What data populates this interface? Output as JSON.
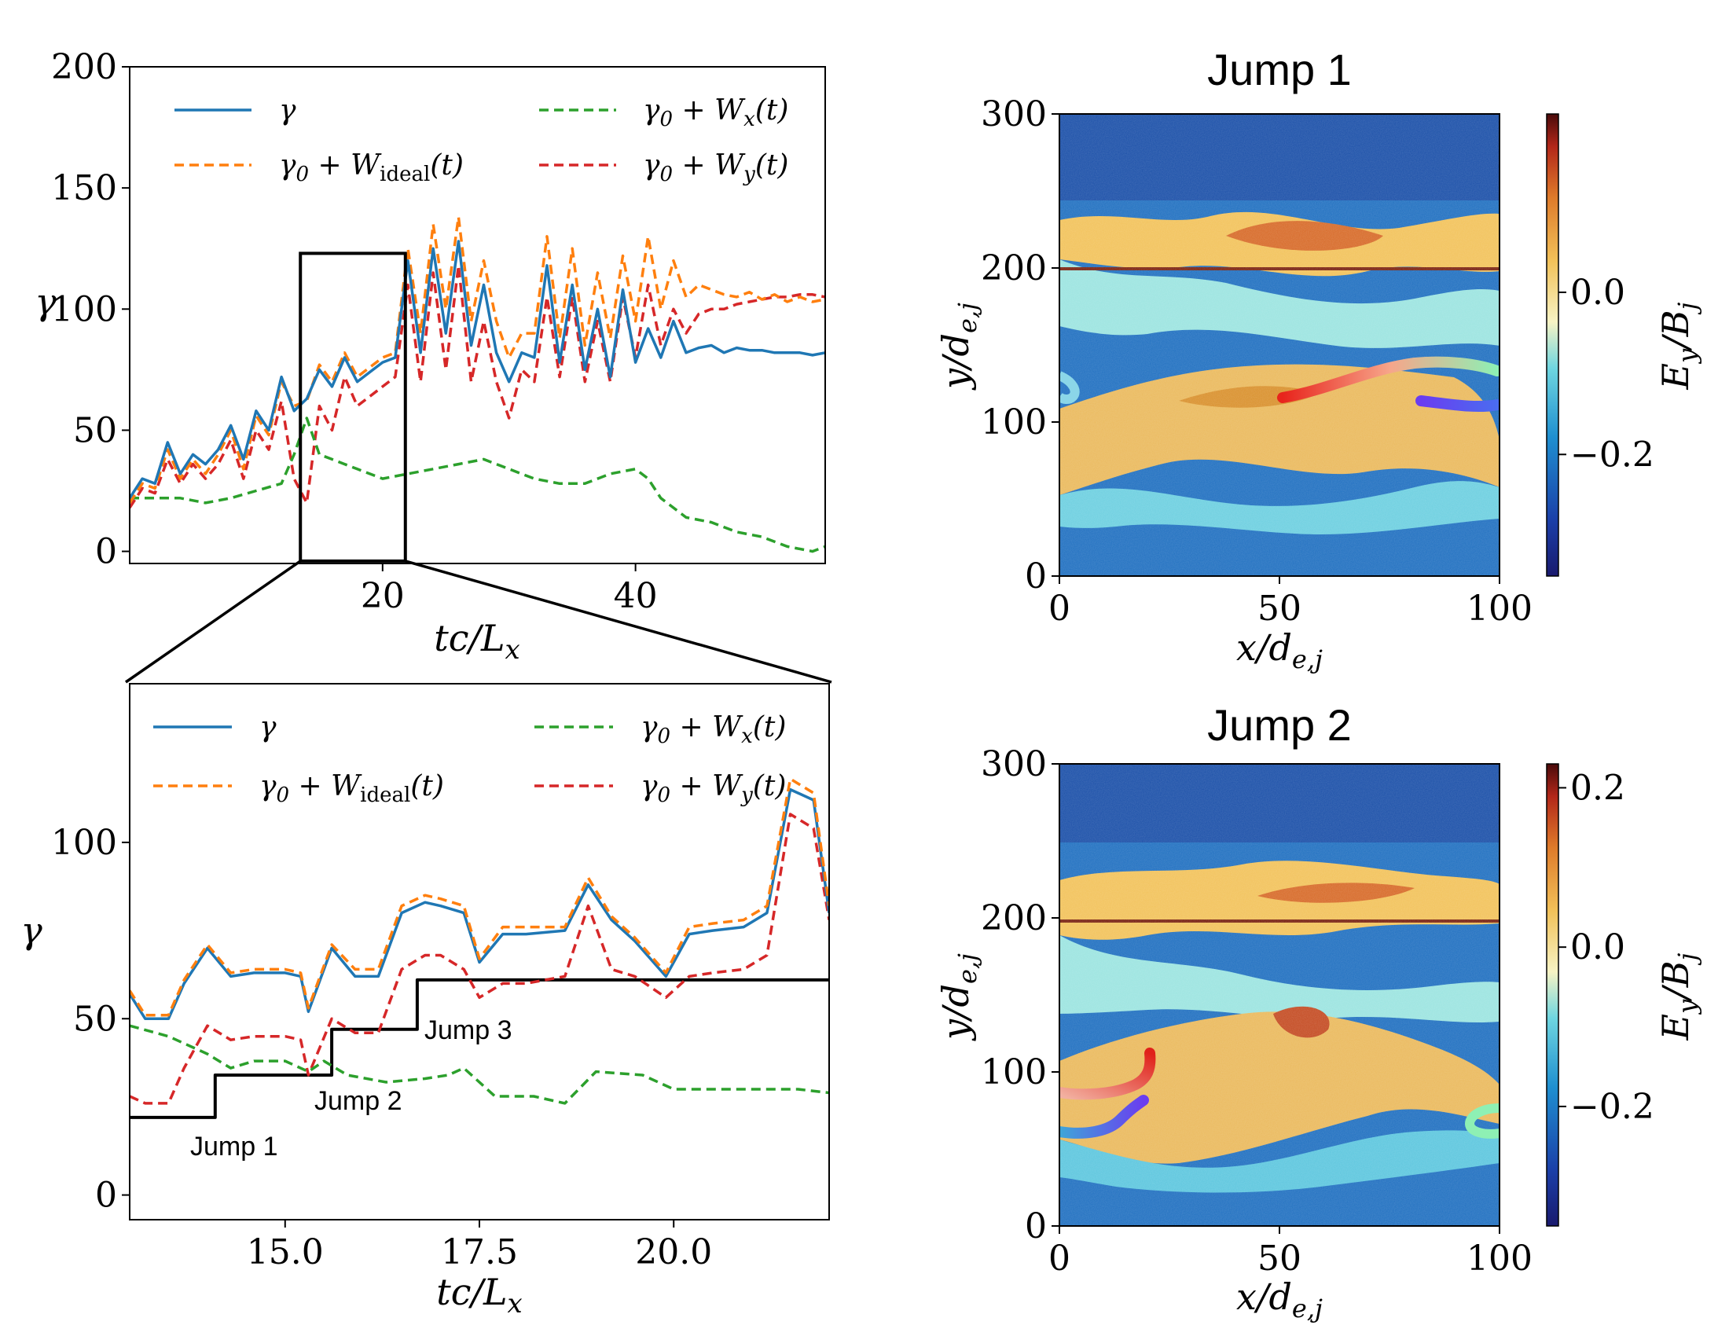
{
  "colors": {
    "gamma": "#1f77b4",
    "ideal": "#ff7f0e",
    "wx": "#2ca02c",
    "wy": "#d62728"
  },
  "chart_data": [
    {
      "id": "top_left",
      "type": "line",
      "xlabel": "tc/L_x",
      "ylabel": "γ",
      "xlim": [
        0,
        55
      ],
      "ylim": [
        -5,
        200
      ],
      "xticks": [
        "20",
        "40"
      ],
      "yticks": [
        "0",
        "50",
        "100",
        "150",
        "200"
      ],
      "legend": [
        "γ",
        "γ0 + W_ideal(t)",
        "γ0 + W_x(t)",
        "γ0 + W_y(t)"
      ],
      "zoom_box": {
        "x": [
          13.5,
          21.8
        ],
        "y": [
          -4,
          123
        ]
      },
      "series": [
        {
          "name": "γ",
          "x": [
            0,
            1,
            2,
            3,
            4,
            5,
            6,
            7,
            8,
            9,
            10,
            11,
            12,
            13,
            14,
            15,
            16,
            17,
            18,
            19,
            20,
            21,
            22,
            23,
            24,
            25,
            26,
            27,
            28,
            29,
            30,
            31,
            32,
            33,
            34,
            35,
            36,
            37,
            38,
            39,
            40,
            41,
            42,
            43,
            44,
            45,
            46,
            47,
            48,
            49,
            50,
            51,
            52,
            53,
            54,
            55
          ],
          "values": [
            22,
            30,
            28,
            45,
            32,
            40,
            36,
            42,
            52,
            38,
            58,
            50,
            72,
            58,
            63,
            75,
            68,
            80,
            70,
            74,
            78,
            80,
            120,
            82,
            125,
            90,
            128,
            85,
            110,
            82,
            70,
            82,
            80,
            118,
            78,
            110,
            75,
            100,
            72,
            108,
            78,
            92,
            80,
            95,
            82,
            84,
            85,
            82,
            84,
            83,
            83,
            82,
            82,
            82,
            81,
            82
          ]
        },
        {
          "name": "γ0 + W_ideal(t)",
          "x": [
            0,
            1,
            2,
            3,
            4,
            5,
            6,
            7,
            8,
            9,
            10,
            11,
            12,
            13,
            14,
            15,
            16,
            17,
            18,
            19,
            20,
            21,
            22,
            23,
            24,
            25,
            26,
            27,
            28,
            29,
            30,
            31,
            32,
            33,
            34,
            35,
            36,
            37,
            38,
            39,
            40,
            41,
            42,
            43,
            44,
            45,
            46,
            47,
            48,
            49,
            50,
            51,
            52,
            53,
            54,
            55
          ],
          "values": [
            20,
            28,
            26,
            42,
            30,
            38,
            32,
            40,
            50,
            34,
            56,
            48,
            70,
            60,
            62,
            77,
            70,
            82,
            72,
            76,
            80,
            82,
            125,
            90,
            135,
            100,
            138,
            95,
            120,
            95,
            80,
            90,
            90,
            130,
            88,
            125,
            85,
            115,
            88,
            122,
            95,
            130,
            100,
            120,
            105,
            110,
            108,
            106,
            105,
            107,
            104,
            106,
            103,
            105,
            103,
            104
          ]
        },
        {
          "name": "γ0 + W_x(t)",
          "x": [
            0,
            2,
            4,
            6,
            8,
            10,
            12,
            13,
            14,
            15,
            16,
            17,
            18,
            20,
            22,
            24,
            26,
            28,
            30,
            32,
            34,
            36,
            38,
            40,
            41,
            42,
            44,
            46,
            48,
            50,
            52,
            54,
            55
          ],
          "values": [
            22,
            22,
            22,
            20,
            22,
            25,
            28,
            40,
            55,
            40,
            38,
            36,
            34,
            30,
            32,
            34,
            36,
            38,
            34,
            30,
            28,
            28,
            32,
            34,
            30,
            22,
            14,
            12,
            8,
            6,
            2,
            0,
            2
          ]
        },
        {
          "name": "γ0 + W_y(t)",
          "x": [
            0,
            1,
            2,
            3,
            4,
            5,
            6,
            7,
            8,
            9,
            10,
            11,
            12,
            13,
            14,
            15,
            16,
            17,
            18,
            19,
            20,
            21,
            22,
            23,
            24,
            25,
            26,
            27,
            28,
            29,
            30,
            31,
            32,
            33,
            34,
            35,
            36,
            37,
            38,
            39,
            40,
            41,
            42,
            43,
            44,
            45,
            46,
            47,
            48,
            49,
            50,
            51,
            52,
            53,
            54,
            55
          ],
          "values": [
            18,
            26,
            24,
            38,
            28,
            36,
            30,
            36,
            46,
            30,
            50,
            42,
            62,
            30,
            20,
            60,
            50,
            72,
            60,
            64,
            68,
            72,
            110,
            70,
            115,
            75,
            118,
            70,
            95,
            70,
            55,
            75,
            70,
            105,
            72,
            105,
            70,
            95,
            70,
            105,
            80,
            110,
            85,
            100,
            90,
            98,
            100,
            100,
            102,
            103,
            104,
            105,
            105,
            106,
            106,
            105
          ]
        }
      ]
    },
    {
      "id": "bottom_left",
      "type": "line",
      "xlabel": "tc/L_x",
      "ylabel": "γ",
      "xlim": [
        13.0,
        22.0
      ],
      "ylim": [
        -7,
        145
      ],
      "xticks": [
        "15.0",
        "17.5",
        "20.0"
      ],
      "yticks": [
        "0",
        "50",
        "100"
      ],
      "legend": [
        "γ",
        "γ0 + W_ideal(t)",
        "γ0 + W_x(t)",
        "γ0 + W_y(t)"
      ],
      "annotations": [
        "Jump 1",
        "Jump 2",
        "Jump 3"
      ],
      "series": [
        {
          "name": "γ",
          "x": [
            13.0,
            13.2,
            13.5,
            13.7,
            14.0,
            14.3,
            14.6,
            15.0,
            15.2,
            15.3,
            15.6,
            15.9,
            16.2,
            16.5,
            16.8,
            17.0,
            17.3,
            17.5,
            17.8,
            18.1,
            18.6,
            18.9,
            19.2,
            19.5,
            19.9,
            20.2,
            20.5,
            20.9,
            21.2,
            21.5,
            21.8,
            22.0
          ],
          "values": [
            57,
            50,
            50,
            60,
            70,
            62,
            63,
            63,
            62,
            52,
            70,
            62,
            62,
            80,
            83,
            82,
            80,
            66,
            74,
            74,
            75,
            88,
            78,
            72,
            62,
            74,
            75,
            76,
            80,
            115,
            112,
            80
          ]
        },
        {
          "name": "γ0 + W_ideal(t)",
          "x": [
            13.0,
            13.2,
            13.5,
            13.7,
            14.0,
            14.3,
            14.6,
            15.0,
            15.2,
            15.3,
            15.6,
            15.9,
            16.2,
            16.5,
            16.8,
            17.0,
            17.3,
            17.5,
            17.8,
            18.1,
            18.6,
            18.9,
            19.2,
            19.5,
            19.9,
            20.2,
            20.5,
            20.9,
            21.2,
            21.5,
            21.8,
            22.0
          ],
          "values": [
            58,
            51,
            51,
            61,
            71,
            63,
            64,
            64,
            63,
            53,
            71,
            64,
            64,
            82,
            85,
            84,
            82,
            67,
            76,
            76,
            76,
            90,
            79,
            73,
            63,
            76,
            77,
            78,
            82,
            118,
            114,
            82
          ]
        },
        {
          "name": "γ0 + W_x(t)",
          "x": [
            13.0,
            13.5,
            14.0,
            14.3,
            14.6,
            15.0,
            15.3,
            15.5,
            15.8,
            16.3,
            16.8,
            17.1,
            17.3,
            17.7,
            18.2,
            18.6,
            19.0,
            19.6,
            20.0,
            20.3,
            21.0,
            21.6,
            22.0
          ],
          "values": [
            48,
            45,
            40,
            36,
            38,
            38,
            35,
            38,
            34,
            32,
            33,
            34,
            36,
            28,
            28,
            26,
            35,
            34,
            30,
            30,
            30,
            30,
            29
          ]
        },
        {
          "name": "γ0 + W_y(t)",
          "x": [
            13.0,
            13.2,
            13.5,
            13.7,
            14.0,
            14.3,
            14.6,
            15.0,
            15.2,
            15.3,
            15.6,
            15.9,
            16.2,
            16.5,
            16.8,
            17.0,
            17.3,
            17.5,
            17.8,
            18.1,
            18.6,
            18.9,
            19.2,
            19.5,
            19.9,
            20.2,
            20.5,
            20.9,
            21.2,
            21.5,
            21.8,
            22.0
          ],
          "values": [
            28,
            26,
            26,
            36,
            48,
            44,
            45,
            45,
            44,
            34,
            50,
            46,
            46,
            64,
            68,
            68,
            64,
            56,
            60,
            60,
            62,
            82,
            64,
            62,
            56,
            62,
            63,
            64,
            68,
            108,
            104,
            78
          ]
        },
        {
          "name": "threshold steps",
          "x": [
            13.0,
            14.1,
            14.1,
            15.6,
            15.6,
            16.7,
            16.7,
            22.0
          ],
          "values": [
            22,
            22,
            34,
            34,
            47,
            47,
            61,
            61
          ]
        }
      ]
    },
    {
      "id": "jump1",
      "type": "heatmap",
      "title": "Jump 1",
      "xlabel": "x/d_e,j",
      "ylabel": "y/d_e,j",
      "colorbar_label": "E_y/B_j",
      "xlim": [
        0,
        100
      ],
      "ylim": [
        0,
        300
      ],
      "xticks": [
        "0",
        "50",
        "100"
      ],
      "yticks": [
        "0",
        "100",
        "200",
        "300"
      ],
      "colorbar_ticks": [
        "0.0",
        "−0.2"
      ],
      "colorbar_range": [
        -0.35,
        0.22
      ]
    },
    {
      "id": "jump2",
      "type": "heatmap",
      "title": "Jump 2",
      "xlabel": "x/d_e,j",
      "ylabel": "y/d_e,j",
      "colorbar_label": "E_y/B_j",
      "xlim": [
        0,
        100
      ],
      "ylim": [
        0,
        300
      ],
      "xticks": [
        "0",
        "50",
        "100"
      ],
      "yticks": [
        "0",
        "100",
        "200",
        "300"
      ],
      "colorbar_ticks": [
        "0.2",
        "0.0",
        "−0.2"
      ],
      "colorbar_range": [
        -0.35,
        0.23
      ]
    }
  ]
}
